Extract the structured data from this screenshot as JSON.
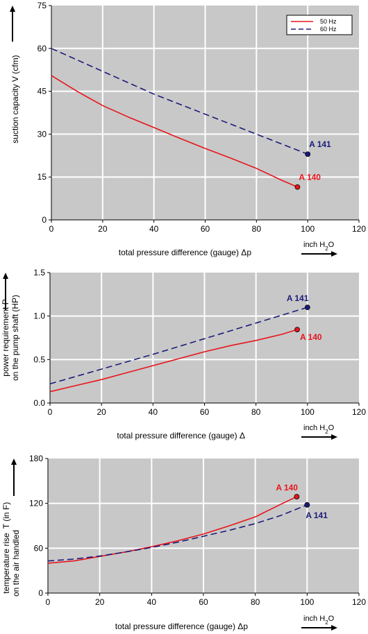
{
  "colors": {
    "series_50": "#e8141b",
    "series_60": "#1b1b7a",
    "plot_bg": "#c8c8c8",
    "grid": "#ffffff"
  },
  "chart_data": [
    {
      "type": "line",
      "ylabel": "suction capacity V (cfm)",
      "xlabel": "total pressure difference (gauge)  Δp",
      "unit_label": "inch H2O",
      "unit_main": "inch H",
      "unit_sub": "2",
      "unit_tail": "O",
      "xlim": [
        0,
        120
      ],
      "ylim": [
        0,
        75
      ],
      "xticks": [
        "0",
        "20",
        "40",
        "60",
        "80",
        "100",
        "120"
      ],
      "yticks": [
        "0",
        "15",
        "30",
        "45",
        "60",
        "75"
      ],
      "grid": true,
      "legend": {
        "placement": "top-right",
        "entries": [
          "50 Hz",
          "60 Hz"
        ]
      },
      "series": [
        {
          "name": "50 Hz",
          "style": "solid",
          "x": [
            0,
            10,
            20,
            30,
            40,
            50,
            60,
            70,
            80,
            90,
            96
          ],
          "y": [
            50.5,
            45,
            40,
            36,
            32.3,
            28.6,
            25,
            21.6,
            18,
            13.8,
            11.5
          ]
        },
        {
          "name": "60 Hz",
          "style": "dashed",
          "x": [
            0,
            20,
            40,
            60,
            80,
            100
          ],
          "y": [
            60,
            52,
            44,
            37,
            30,
            23
          ]
        }
      ],
      "markers": [
        {
          "label": "A 140",
          "x": 96,
          "y": 11.5,
          "series": "50 Hz",
          "position": "above"
        },
        {
          "label": "A 141",
          "x": 100,
          "y": 23,
          "series": "60 Hz",
          "position": "above"
        }
      ]
    },
    {
      "type": "line",
      "ylabel_line1": "power requirement P",
      "ylabel_line2": "on the pump shaft (HP)",
      "xlabel": "total pressure difference (gauge)  Δ",
      "unit_label": "inch H2O",
      "unit_main": "inch H",
      "unit_sub": "2",
      "unit_tail": "O",
      "xlim": [
        0,
        120
      ],
      "ylim": [
        0,
        1.5
      ],
      "xticks": [
        "0",
        "20",
        "40",
        "60",
        "80",
        "100",
        "120"
      ],
      "yticks": [
        "0.0",
        "0.5",
        "1.0",
        "1.5"
      ],
      "grid": true,
      "series": [
        {
          "name": "50 Hz",
          "style": "solid",
          "x": [
            0,
            10,
            20,
            30,
            40,
            50,
            60,
            70,
            80,
            90,
            96
          ],
          "y": [
            0.13,
            0.2,
            0.27,
            0.35,
            0.43,
            0.51,
            0.59,
            0.66,
            0.72,
            0.79,
            0.845
          ]
        },
        {
          "name": "60 Hz",
          "style": "dashed",
          "x": [
            0,
            20,
            40,
            60,
            80,
            100
          ],
          "y": [
            0.22,
            0.39,
            0.56,
            0.74,
            0.92,
            1.1
          ]
        }
      ],
      "markers": [
        {
          "label": "A 140",
          "x": 96,
          "y": 0.845,
          "series": "50 Hz",
          "position": "below-right"
        },
        {
          "label": "A 141",
          "x": 100,
          "y": 1.1,
          "series": "60 Hz",
          "position": "above-left"
        }
      ]
    },
    {
      "type": "line",
      "ylabel_line1": "temperature rise",
      "ylabel_line2": "on the air handled",
      "ylabel_symbol": "T    (in F)",
      "xlabel": "total pressure difference (gauge)  Δp",
      "unit_label": "inch H2O",
      "unit_main": "inch H",
      "unit_sub": "2",
      "unit_tail": "O",
      "xlim": [
        0,
        120
      ],
      "ylim": [
        0,
        180
      ],
      "xticks": [
        "0",
        "20",
        "40",
        "60",
        "80",
        "100",
        "120"
      ],
      "yticks": [
        "0",
        "60",
        "120",
        "180"
      ],
      "grid": true,
      "series": [
        {
          "name": "50 Hz",
          "style": "solid",
          "x": [
            0,
            10,
            20,
            30,
            40,
            50,
            60,
            70,
            80,
            90,
            96
          ],
          "y": [
            40,
            43,
            49,
            55,
            62,
            70,
            79,
            90,
            102,
            119,
            129
          ]
        },
        {
          "name": "60 Hz",
          "style": "dashed",
          "x": [
            0,
            10,
            20,
            30,
            40,
            50,
            60,
            70,
            80,
            90,
            100
          ],
          "y": [
            43,
            45.5,
            49.5,
            55,
            61,
            68,
            76,
            84,
            93,
            104,
            118
          ]
        }
      ],
      "markers": [
        {
          "label": "A 140",
          "x": 96,
          "y": 129,
          "series": "50 Hz",
          "position": "above-left"
        },
        {
          "label": "A 141",
          "x": 100,
          "y": 118,
          "series": "60 Hz",
          "position": "below"
        }
      ]
    }
  ]
}
